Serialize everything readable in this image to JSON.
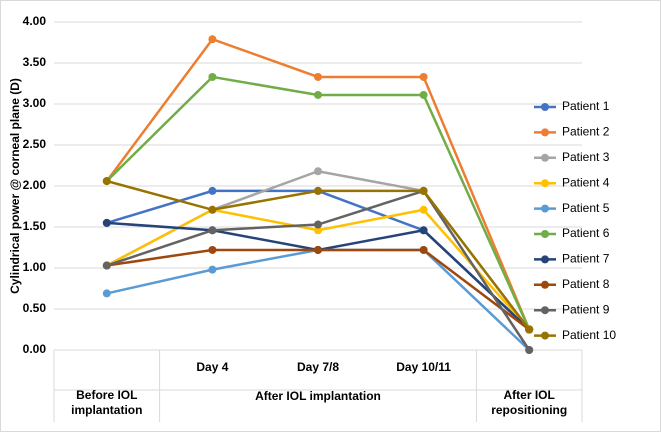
{
  "chart_data": {
    "type": "line",
    "y_label": "Cylindrical power @ corneal plane (D)",
    "categories": [
      null,
      "Day 4",
      "Day 7/8",
      "Day 10/11",
      null
    ],
    "x_groups": [
      "Before IOL implantation",
      "After IOL implantation",
      "After IOL repositioning"
    ],
    "ylim": [
      0,
      4
    ],
    "yticks": [
      {
        "value": 0,
        "label": "0.00"
      },
      {
        "value": 0.5,
        "label": "0.50"
      },
      {
        "value": 1,
        "label": "1.00"
      },
      {
        "value": 1.5,
        "label": "1.50"
      },
      {
        "value": 2,
        "label": "2.00"
      },
      {
        "value": 2.5,
        "label": "2.50"
      },
      {
        "value": 3,
        "label": "3.00"
      },
      {
        "value": 3.5,
        "label": "3.50"
      },
      {
        "value": 4,
        "label": "4.00"
      }
    ],
    "grid": true,
    "legend": "right",
    "series": [
      {
        "name": "Patient 1",
        "color": "#4472c4",
        "values": [
          1.55,
          1.94,
          1.94,
          1.46,
          0.25
        ]
      },
      {
        "name": "Patient 2",
        "color": "#ed7d31",
        "values": [
          2.06,
          3.79,
          3.33,
          3.33,
          0.25
        ]
      },
      {
        "name": "Patient 3",
        "color": "#a5a5a5",
        "values": [
          1.03,
          1.71,
          2.18,
          1.94,
          0.25
        ]
      },
      {
        "name": "Patient 4",
        "color": "#ffc000",
        "values": [
          1.03,
          1.71,
          1.46,
          1.71,
          0.25
        ]
      },
      {
        "name": "Patient 5",
        "color": "#5b9bd5",
        "values": [
          0.69,
          0.98,
          1.22,
          1.22,
          0
        ]
      },
      {
        "name": "Patient 6",
        "color": "#70ad47",
        "values": [
          2.06,
          3.33,
          3.11,
          3.11,
          0.25
        ]
      },
      {
        "name": "Patient 7",
        "color": "#264478",
        "values": [
          1.55,
          1.46,
          1.22,
          1.46,
          0.25
        ]
      },
      {
        "name": "Patient 8",
        "color": "#9e480e",
        "values": [
          1.03,
          1.22,
          1.22,
          1.22,
          0.25
        ]
      },
      {
        "name": "Patient 9",
        "color": "#636363",
        "values": [
          1.03,
          1.46,
          1.53,
          1.94,
          0
        ]
      },
      {
        "name": "Patient 10",
        "color": "#997300",
        "values": [
          2.06,
          1.71,
          1.94,
          1.94,
          0.25
        ]
      }
    ]
  }
}
